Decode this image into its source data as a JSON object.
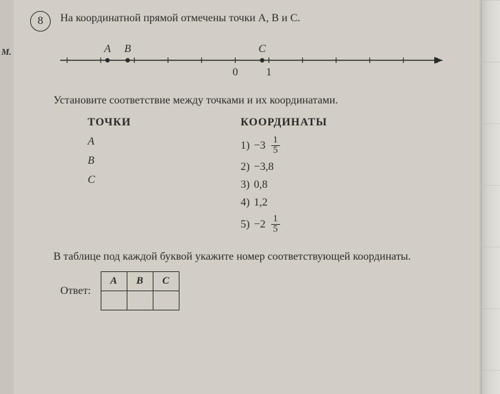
{
  "margin_label": "М.",
  "problem_number": "8",
  "statement": "На координатной прямой отмечены точки A, B и C.",
  "numberline": {
    "ticks": [
      -5,
      -4,
      -3,
      -2,
      -1,
      0,
      1,
      2,
      3,
      4,
      5,
      6
    ],
    "origin_label": "0",
    "one_label": "1",
    "points": {
      "A": {
        "label": "A",
        "x": -3.8
      },
      "B": {
        "label": "B",
        "x": -3.2
      },
      "C": {
        "label": "C",
        "x": 0.8
      }
    },
    "axis_color": "#2a2a2a",
    "tick_height": 8
  },
  "instruction": "Установите соответствие между точками и их координатами.",
  "left_header": "ТОЧКИ",
  "right_header": "КООРДИНАТЫ",
  "point_labels": [
    "A",
    "B",
    "C"
  ],
  "coords": [
    {
      "n": "1)",
      "lead": "−3",
      "frac_num": "1",
      "frac_den": "5"
    },
    {
      "n": "2)",
      "text": "−3,8"
    },
    {
      "n": "3)",
      "text": "0,8"
    },
    {
      "n": "4)",
      "text": "1,2"
    },
    {
      "n": "5)",
      "lead": "−2",
      "frac_num": "1",
      "frac_den": "5"
    }
  ],
  "footer_instruction": "В таблице под каждой буквой укажите номер соответствующей координаты.",
  "answer_label": "Ответ:",
  "answer_headers": [
    "A",
    "B",
    "C"
  ]
}
